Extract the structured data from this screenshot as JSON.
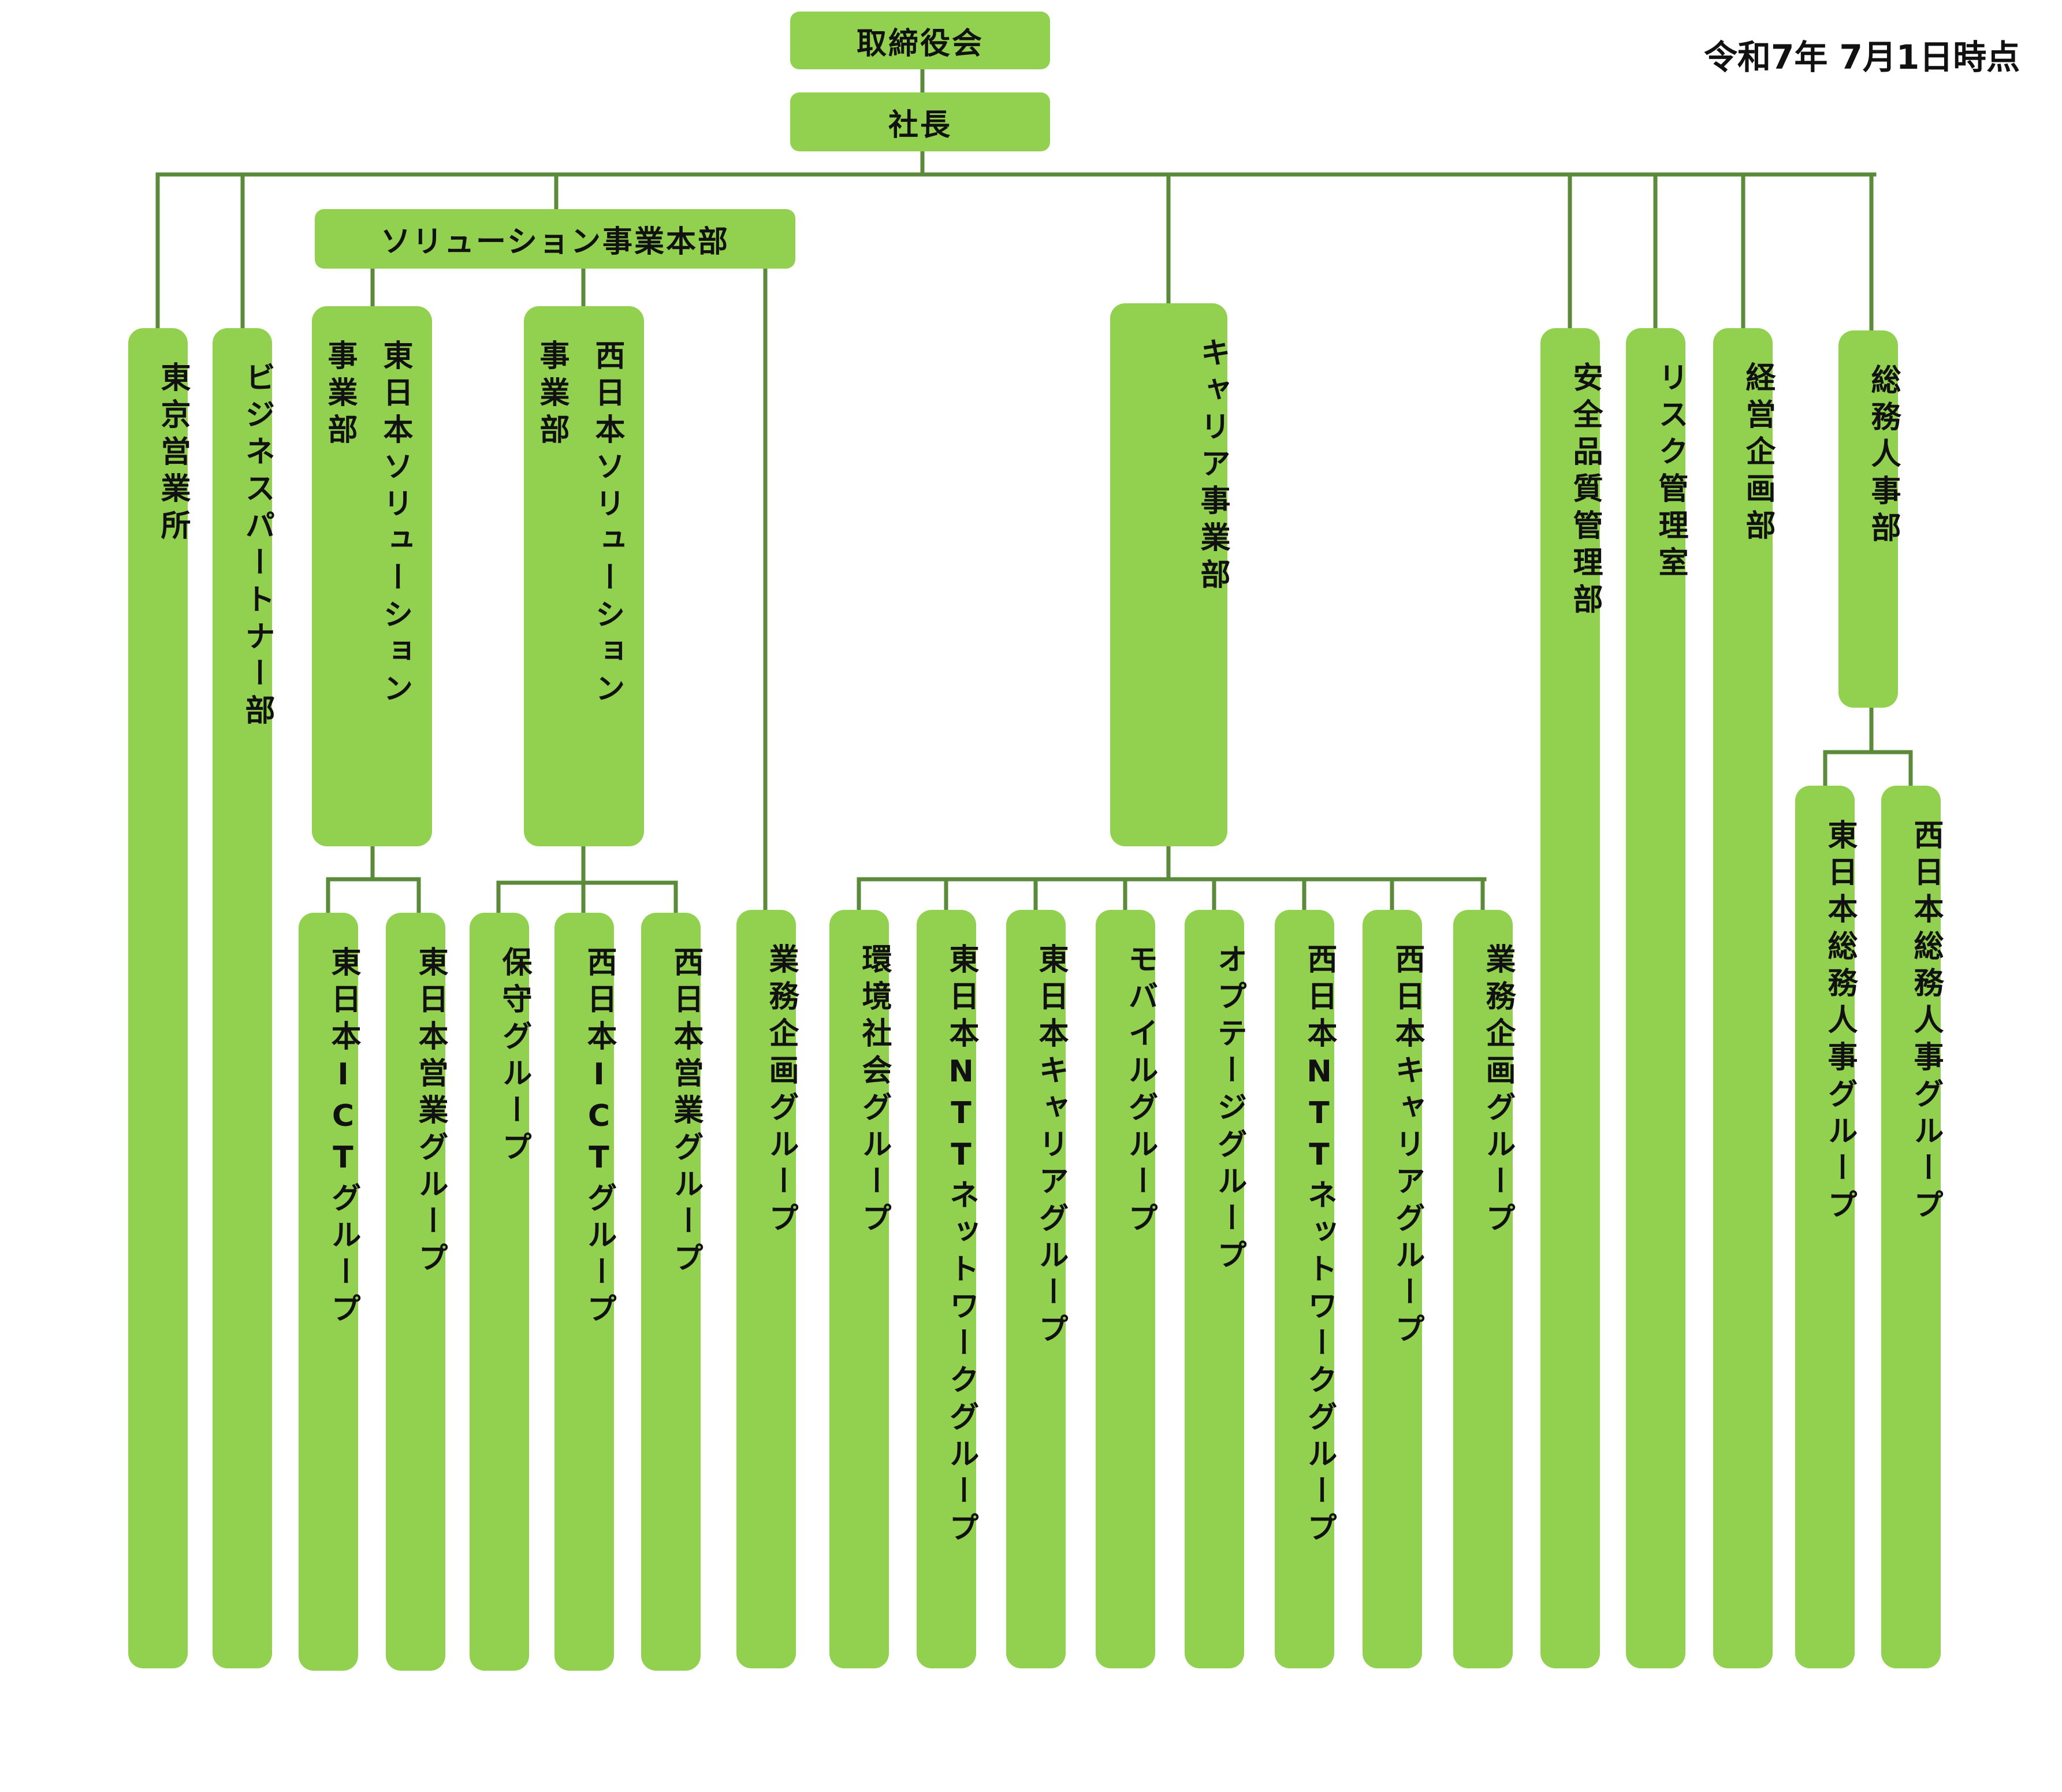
{
  "as_of": "令和7年 7月1日時点",
  "board": "取締役会",
  "president": "社長",
  "solution_hq": "ソリューション事業本部",
  "tokyo_office": "東京営業所",
  "business_partner": "ビジネスパートナー部",
  "east_solution": {
    "line1": "東日本ソリューション",
    "line2": "事業部"
  },
  "west_solution": {
    "line1": "西日本ソリューション",
    "line2": "事業部"
  },
  "east_groups": [
    "東日本ICTグループ",
    "東日本営業グループ"
  ],
  "west_groups": [
    "保守グループ",
    "西日本ICTグループ",
    "西日本営業グループ"
  ],
  "solution_planning": "業務企画グループ",
  "carrier_division": "キャリア事業部",
  "carrier_groups": [
    "環境社会グループ",
    "東日本NTTネットワークグループ",
    "東日本キャリアグループ",
    "モバイルグループ",
    "オプテージグループ",
    "西日本NTTネットワークグループ",
    "西日本キャリアグループ",
    "業務企画グループ"
  ],
  "safety_quality": "安全品質管理部",
  "risk_management": "リスク管理室",
  "management_planning": "経営企画部",
  "general_affairs": "総務人事部",
  "general_affairs_groups": [
    "東日本総務人事グループ",
    "西日本総務人事グループ"
  ],
  "colors": {
    "box_fill": "#92d050",
    "connector": "#5a8a3a"
  }
}
